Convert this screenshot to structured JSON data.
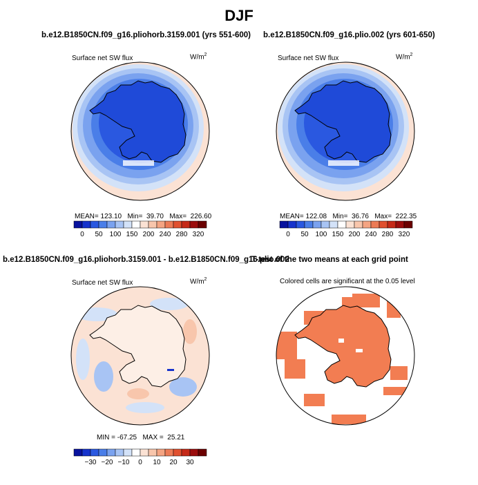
{
  "figure_title": "DJF",
  "panels": {
    "tl": {
      "title": "b.e12.B1850CN.f09_g16.pliohorb.3159.001 (yrs 551-600)",
      "left_label": "Surface net SW flux",
      "units_base": "W/m",
      "units_exp": "2",
      "stat1_label": "MEAN=",
      "stat1_value": "123.10",
      "stat2_label": "Min=",
      "stat2_value": "39.70",
      "stat3_label": "Max=",
      "stat3_value": "226.60"
    },
    "tr": {
      "title": "b.e12.B1850CN.f09_g16.plio.002 (yrs 601-650)",
      "left_label": "Surface net SW flux",
      "units_base": "W/m",
      "units_exp": "2",
      "stat1_label": "MEAN=",
      "stat1_value": "122.08",
      "stat2_label": "Min=",
      "stat2_value": "36.76",
      "stat3_label": "Max=",
      "stat3_value": "222.35"
    },
    "bl": {
      "title": "b.e12.B1850CN.f09_g16.pliohorb.3159.001 - b.e12.B1850CN.f09_g16.plio.002",
      "left_label": "Surface net SW flux",
      "units_base": "W/m",
      "units_exp": "2",
      "stat1_label": "MIN =",
      "stat1_value": "-67.25",
      "stat2_label": "MAX =",
      "stat2_value": "25.21"
    },
    "br": {
      "title": "T-test of the two means at each grid point",
      "center_label": "Colored cells are significant at the 0.05 level"
    }
  },
  "colorbars": {
    "top_colors": [
      "#08129e",
      "#1633cc",
      "#2a58e0",
      "#4a7ee8",
      "#7aa2ef",
      "#a8c4f4",
      "#d3e2f8",
      "#ffffff",
      "#fbe2d4",
      "#f8c6ac",
      "#f4a482",
      "#ec7b56",
      "#e0502f",
      "#c52a18",
      "#9b0d0d",
      "#6b0000"
    ],
    "top_labels": [
      "0",
      "50",
      "100",
      "150",
      "200",
      "240",
      "280",
      "320"
    ],
    "diff_colors": [
      "#08129e",
      "#1633cc",
      "#2a58e0",
      "#4a7ee8",
      "#7aa2ef",
      "#a8c4f4",
      "#d3e2f8",
      "#ffffff",
      "#fbe2d4",
      "#f8c6ac",
      "#f4a482",
      "#ec7b56",
      "#e0502f",
      "#c52a18",
      "#9b0d0d",
      "#6b0000"
    ],
    "diff_labels": [
      "−30",
      "−20",
      "−10",
      "0",
      "10",
      "20",
      "30"
    ]
  },
  "colors": {
    "ocean_warm": "#fbe2d4",
    "ice_blue": "#1f4ad8",
    "sig_orange": "#f27d52"
  }
}
